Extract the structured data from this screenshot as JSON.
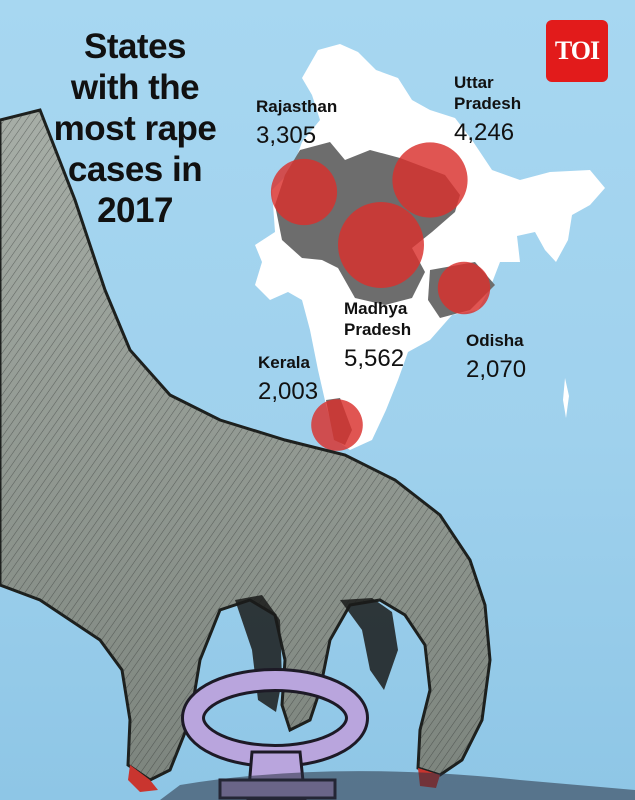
{
  "title_lines": [
    "States",
    "with the",
    "most rape",
    "cases in",
    "2017"
  ],
  "logo": {
    "text": "TOI",
    "color": "#e21b1b"
  },
  "colors": {
    "background": "#a7d7f1",
    "map_land": "#ffffff",
    "map_highlight": "#6d6d6d",
    "bubble": "#d9302c"
  },
  "icons": {
    "gender_symbol": "female-symbol-icon"
  },
  "states": [
    {
      "name_lines": [
        "Rajasthan"
      ],
      "value": "3,305",
      "cases": 3305
    },
    {
      "name_lines": [
        "Uttar",
        "Pradesh"
      ],
      "value": "4,246",
      "cases": 4246
    },
    {
      "name_lines": [
        "Madhya",
        "Pradesh"
      ],
      "value": "5,562",
      "cases": 5562
    },
    {
      "name_lines": [
        "Odisha"
      ],
      "value": "2,070",
      "cases": 2070
    },
    {
      "name_lines": [
        "Kerala"
      ],
      "value": "2,003",
      "cases": 2003
    }
  ]
}
